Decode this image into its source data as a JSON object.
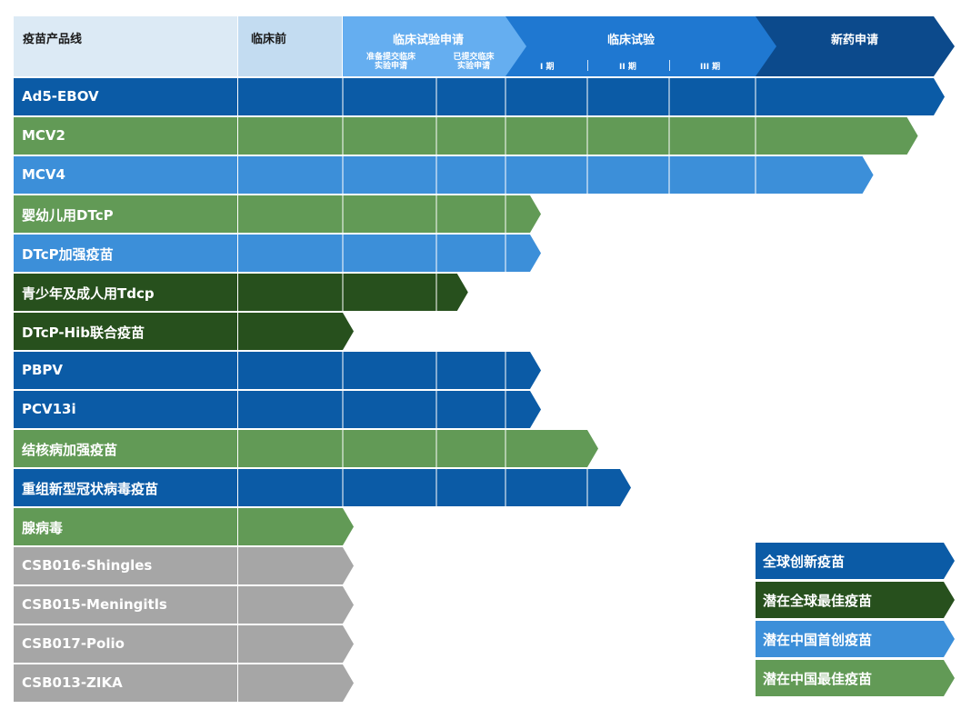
{
  "colors": {
    "global_innovative": "#0b5ba6",
    "global_best": "#27501d",
    "china_first": "#3c8fd9",
    "china_best": "#629a56",
    "inactive": "#a6a6a6",
    "header_product": "#dceaf5",
    "header_preclinical": "#c3dcf1",
    "header_ind": "#65aef0",
    "header_trial": "#1f78d1",
    "header_nda": "#0c4a8c"
  },
  "header": {
    "product_line": "疫苗产品线",
    "preclinical": "临床前",
    "ind_application": "临床试验申请",
    "ind_preparing": "准备提交临床\n实验申请",
    "ind_submitted": "已提交临床\n实验申请",
    "clinical_trial": "临床试验",
    "phase1": "I 期",
    "phase2": "II 期",
    "phase3": "III 期",
    "nda": "新药申请"
  },
  "stages": [
    "临床前",
    "准备提交临床实验申请",
    "已提交临床实验申请",
    "I 期",
    "II 期",
    "III 期",
    "新药申请"
  ],
  "products": [
    {
      "name": "Ad5-EBOV",
      "category": "global_innovative",
      "progress": 7
    },
    {
      "name": "MCV2",
      "category": "china_best",
      "progress": 6.85
    },
    {
      "name": "MCV4",
      "category": "china_first",
      "progress": 6.6
    },
    {
      "name": "婴幼儿用DTcP",
      "category": "china_best",
      "progress": 3.3
    },
    {
      "name": "DTcP加强疫苗",
      "category": "china_first",
      "progress": 3.3
    },
    {
      "name": "青少年及成人用Tdcp",
      "category": "global_best",
      "progress": 2.3
    },
    {
      "name": "DTcP-Hib联合疫苗",
      "category": "global_best",
      "progress": 1
    },
    {
      "name": "PBPV",
      "category": "global_innovative",
      "progress": 3.3
    },
    {
      "name": "PCV13i",
      "category": "global_innovative",
      "progress": 3.3
    },
    {
      "name": "结核病加强疫苗",
      "category": "china_best",
      "progress": 4
    },
    {
      "name": "重组新型冠状病毒疫苗",
      "category": "global_innovative",
      "progress": 4.4
    },
    {
      "name": "腺病毒",
      "category": "china_best",
      "progress": 1
    },
    {
      "name": "CSB016-Shingles",
      "category": "inactive",
      "progress": 1
    },
    {
      "name": "CSB015-Meningitls",
      "category": "inactive",
      "progress": 1
    },
    {
      "name": "CSB017-Polio",
      "category": "inactive",
      "progress": 1
    },
    {
      "name": "CSB013-ZIKA",
      "category": "inactive",
      "progress": 1
    }
  ],
  "legend": [
    {
      "label": "全球创新疫苗",
      "category": "global_innovative"
    },
    {
      "label": "潜在全球最佳疫苗",
      "category": "global_best"
    },
    {
      "label": "潜在中国首创疫苗",
      "category": "china_first"
    },
    {
      "label": "潜在中国最佳疫苗",
      "category": "china_best"
    }
  ]
}
